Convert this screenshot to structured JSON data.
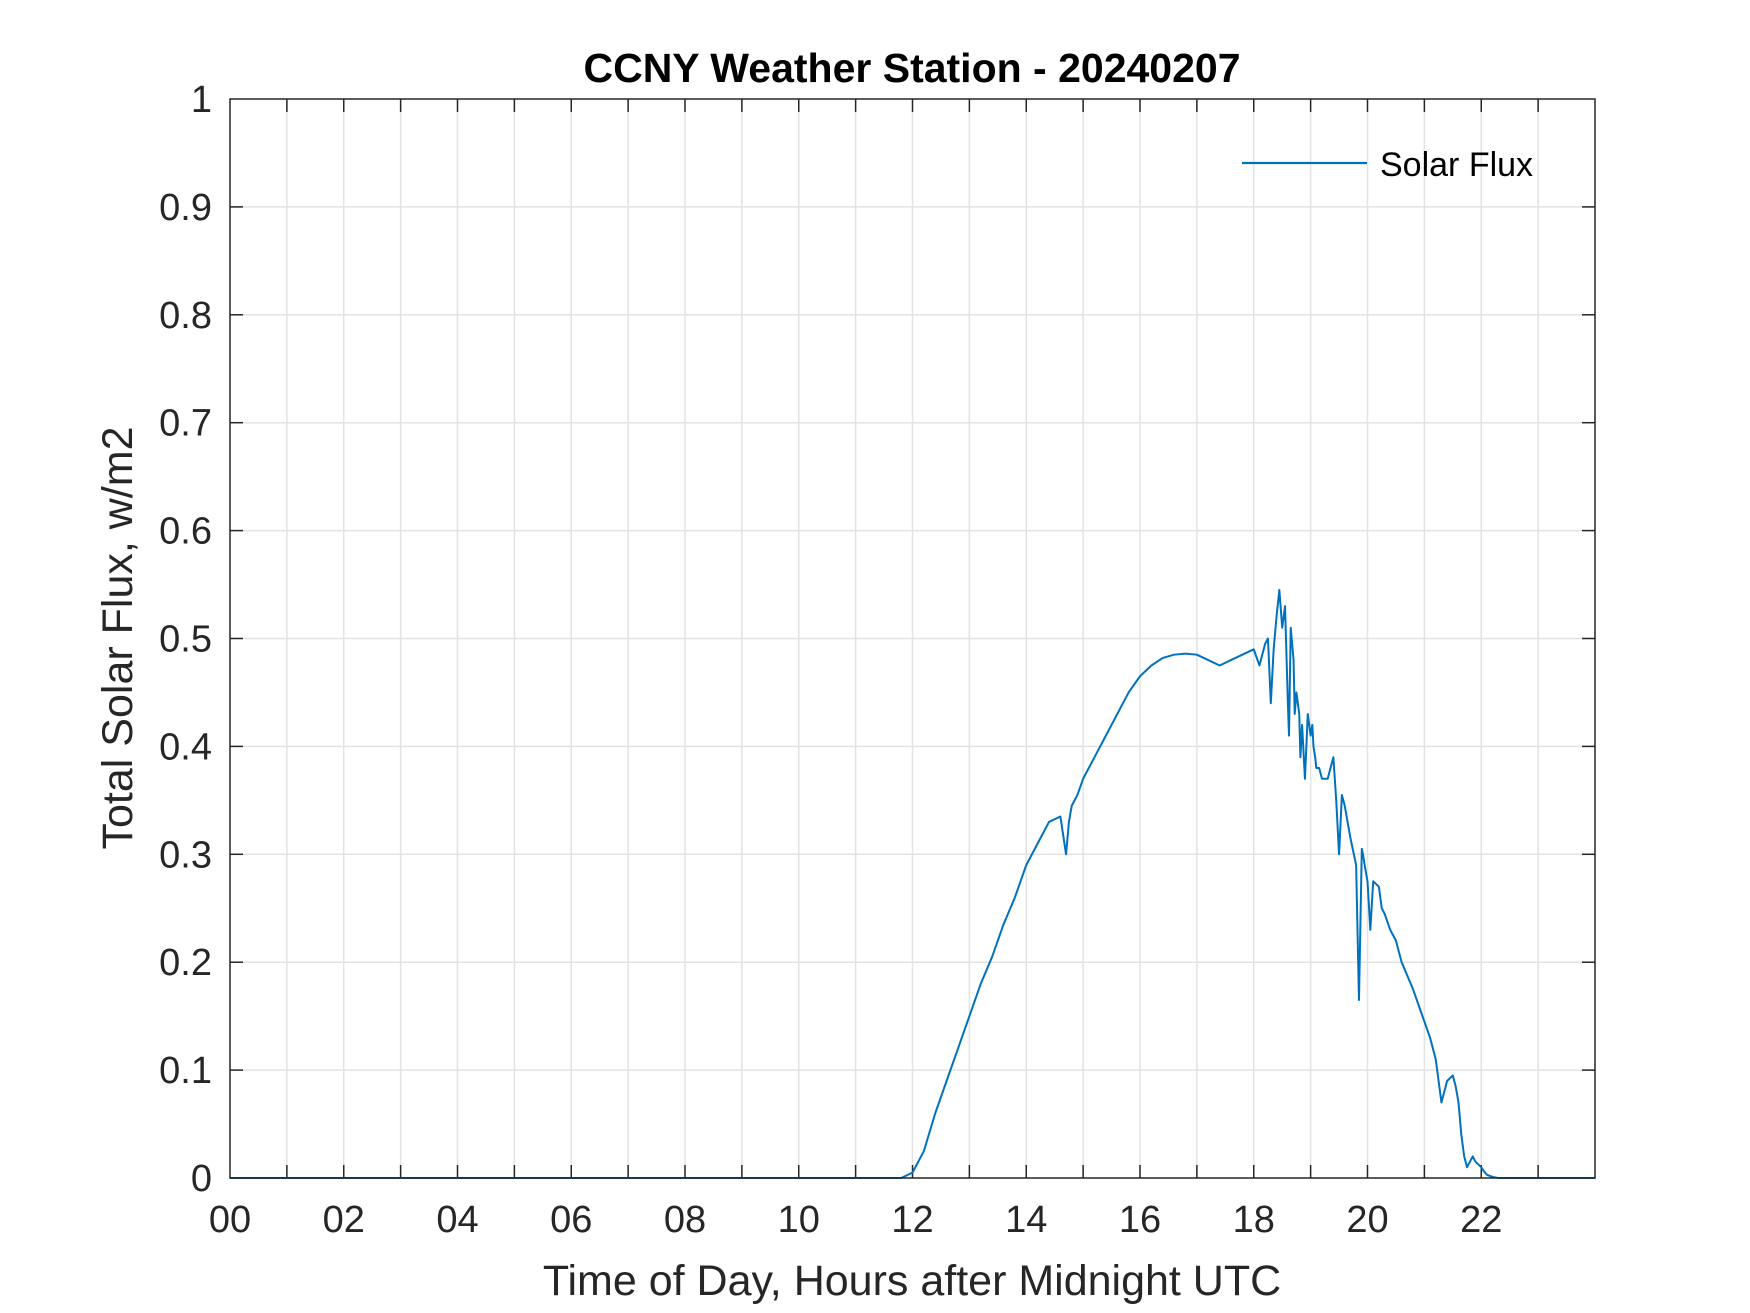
{
  "chart_data": {
    "type": "line",
    "title": "CCNY Weather Station - 20240207",
    "xlabel": "Time of Day, Hours after Midnight UTC",
    "ylabel": "Total Solar Flux, w/m2",
    "xlim": [
      0,
      24
    ],
    "ylim": [
      0,
      1
    ],
    "grid": true,
    "legend_position": "top-right",
    "x_tick_labels": [
      "00",
      "02",
      "04",
      "06",
      "08",
      "10",
      "12",
      "14",
      "16",
      "18",
      "20",
      "22"
    ],
    "y_tick_labels": [
      "0",
      "0.1",
      "0.2",
      "0.3",
      "0.4",
      "0.5",
      "0.6",
      "0.7",
      "0.8",
      "0.9",
      "1"
    ],
    "series": [
      {
        "name": "Solar Flux",
        "color": "#0072BD",
        "x": [
          0,
          11.8,
          12.0,
          12.2,
          12.4,
          12.6,
          12.8,
          13.0,
          13.2,
          13.4,
          13.6,
          13.8,
          13.9,
          14.0,
          14.2,
          14.4,
          14.6,
          14.7,
          14.75,
          14.8,
          14.85,
          14.9,
          15.0,
          15.2,
          15.4,
          15.6,
          15.8,
          16.0,
          16.2,
          16.4,
          16.6,
          16.8,
          17.0,
          17.2,
          17.4,
          17.6,
          17.8,
          18.0,
          18.1,
          18.2,
          18.25,
          18.3,
          18.35,
          18.4,
          18.45,
          18.5,
          18.55,
          18.6,
          18.62,
          18.65,
          18.7,
          18.72,
          18.75,
          18.8,
          18.82,
          18.85,
          18.9,
          18.95,
          19.0,
          19.03,
          19.05,
          19.08,
          19.1,
          19.15,
          19.2,
          19.3,
          19.4,
          19.45,
          19.5,
          19.55,
          19.6,
          19.65,
          19.7,
          19.8,
          19.85,
          19.9,
          19.92,
          19.95,
          20.0,
          20.05,
          20.1,
          20.2,
          20.25,
          20.3,
          20.4,
          20.45,
          20.5,
          20.6,
          20.8,
          20.9,
          21.0,
          21.1,
          21.2,
          21.3,
          21.4,
          21.5,
          21.55,
          21.6,
          21.65,
          21.7,
          21.75,
          21.8,
          21.85,
          21.9,
          22.0,
          22.05,
          22.1,
          22.2,
          22.3,
          22.5,
          22.6,
          22.7,
          22.75,
          22.8,
          23.0,
          23.5,
          24.0
        ],
        "y": [
          0,
          0,
          0.005,
          0.025,
          0.06,
          0.09,
          0.12,
          0.15,
          0.18,
          0.205,
          0.235,
          0.26,
          0.275,
          0.29,
          0.31,
          0.33,
          0.335,
          0.3,
          0.33,
          0.345,
          0.35,
          0.355,
          0.37,
          0.39,
          0.41,
          0.43,
          0.45,
          0.465,
          0.475,
          0.482,
          0.485,
          0.486,
          0.485,
          0.48,
          0.475,
          0.48,
          0.485,
          0.49,
          0.475,
          0.495,
          0.5,
          0.44,
          0.49,
          0.52,
          0.545,
          0.51,
          0.53,
          0.44,
          0.41,
          0.51,
          0.48,
          0.43,
          0.45,
          0.43,
          0.39,
          0.42,
          0.37,
          0.43,
          0.41,
          0.42,
          0.4,
          0.39,
          0.38,
          0.38,
          0.37,
          0.37,
          0.39,
          0.35,
          0.3,
          0.355,
          0.345,
          0.33,
          0.315,
          0.29,
          0.165,
          0.305,
          0.3,
          0.29,
          0.275,
          0.23,
          0.275,
          0.27,
          0.25,
          0.245,
          0.23,
          0.225,
          0.22,
          0.2,
          0.175,
          0.16,
          0.145,
          0.13,
          0.11,
          0.07,
          0.09,
          0.095,
          0.085,
          0.07,
          0.04,
          0.02,
          0.01,
          0.015,
          0.02,
          0.015,
          0.01,
          0.006,
          0.003,
          0.001,
          0.0,
          0,
          0,
          0,
          0,
          0,
          0,
          0,
          0
        ]
      }
    ]
  }
}
